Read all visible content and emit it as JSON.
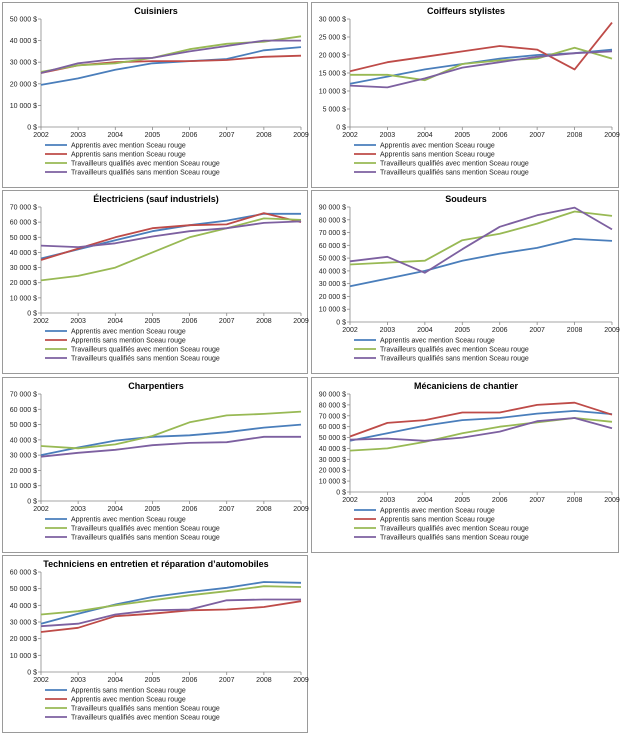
{
  "colors": {
    "blue": "#4a7ebb",
    "red": "#be4b48",
    "green": "#98b954",
    "purple": "#7d60a0"
  },
  "chart_data": [
    {
      "type": "line",
      "title": "Cuisiniers",
      "ylim": [
        0,
        50000
      ],
      "yticks": [
        0,
        10000,
        20000,
        30000,
        40000,
        50000
      ],
      "ytick_labels": [
        "0 $",
        "10 000 $",
        "20 000 $",
        "30 000 $",
        "40 000 $",
        "50 000 $"
      ],
      "categories": [
        "2002",
        "2003",
        "2004",
        "2005",
        "2006",
        "2007",
        "2008",
        "2009"
      ],
      "series": [
        {
          "name": "Apprentis avec mention Sceau rouge",
          "color": "blue",
          "values": [
            19500,
            22500,
            26500,
            29500,
            30500,
            31500,
            35500,
            37000
          ]
        },
        {
          "name": "Apprentis sans mention Sceau rouge",
          "color": "red",
          "values": [
            25000,
            28500,
            30000,
            30500,
            30500,
            31000,
            32500,
            33000
          ]
        },
        {
          "name": "Travailleurs qualifiés avec mention Sceau rouge",
          "color": "green",
          "values": [
            25500,
            28500,
            29500,
            32000,
            36000,
            38500,
            39500,
            42000
          ]
        },
        {
          "name": "Travailleurs qualifiés sans mention Sceau rouge",
          "color": "purple",
          "values": [
            25000,
            29500,
            31500,
            32000,
            35000,
            37500,
            40000,
            40000
          ]
        }
      ]
    },
    {
      "type": "line",
      "title": "Coiffeurs stylistes",
      "ylim": [
        0,
        30000
      ],
      "yticks": [
        0,
        5000,
        10000,
        15000,
        20000,
        25000,
        30000
      ],
      "ytick_labels": [
        "0 $",
        "5 000 $",
        "10 000 $",
        "15 000 $",
        "20 000 $",
        "25 000 $",
        "30 000 $"
      ],
      "categories": [
        "2002",
        "2003",
        "2004",
        "2005",
        "2006",
        "2007",
        "2008",
        "2009"
      ],
      "series": [
        {
          "name": "Apprentis avec mention Sceau rouge",
          "color": "blue",
          "values": [
            12000,
            14000,
            16000,
            17500,
            19000,
            20000,
            20500,
            21500
          ]
        },
        {
          "name": "Apprentis sans mention Sceau rouge",
          "color": "red",
          "values": [
            15500,
            18000,
            19500,
            21000,
            22500,
            21500,
            16000,
            29000
          ]
        },
        {
          "name": "Travailleurs qualifiés avec mention Sceau rouge",
          "color": "green",
          "values": [
            14500,
            14500,
            13000,
            17500,
            18500,
            19000,
            22000,
            19000
          ]
        },
        {
          "name": "Travailleurs qualifiés sans mention Sceau rouge",
          "color": "purple",
          "values": [
            11500,
            11000,
            13500,
            16500,
            18000,
            19500,
            20500,
            21000
          ]
        }
      ]
    },
    {
      "type": "line",
      "title": "Électriciens (sauf industriels)",
      "ylim": [
        0,
        70000
      ],
      "yticks": [
        0,
        10000,
        20000,
        30000,
        40000,
        50000,
        60000,
        70000
      ],
      "ytick_labels": [
        "0 $",
        "10 000 $",
        "20 000 $",
        "30 000 $",
        "40 000 $",
        "50 000 $",
        "60 000 $",
        "70 000 $"
      ],
      "categories": [
        "2002",
        "2003",
        "2004",
        "2005",
        "2006",
        "2007",
        "2008",
        "2009"
      ],
      "series": [
        {
          "name": "Apprentis avec mention Sceau rouge",
          "color": "blue",
          "values": [
            36000,
            42000,
            48000,
            54000,
            58000,
            61000,
            65500,
            65500
          ]
        },
        {
          "name": "Apprentis sans mention Sceau rouge",
          "color": "red",
          "values": [
            35000,
            42500,
            50000,
            56000,
            58000,
            58500,
            66000,
            60000
          ]
        },
        {
          "name": "Travailleurs qualifiés avec mention Sceau rouge",
          "color": "green",
          "values": [
            21500,
            24500,
            30000,
            40000,
            50000,
            56000,
            62500,
            61500
          ]
        },
        {
          "name": "Travailleurs qualifiés sans mention Sceau rouge",
          "color": "purple",
          "values": [
            44500,
            43500,
            46000,
            50500,
            54000,
            56000,
            59500,
            60500
          ]
        }
      ]
    },
    {
      "type": "line",
      "title": "Soudeurs",
      "ylim": [
        0,
        90000
      ],
      "yticks": [
        0,
        10000,
        20000,
        30000,
        40000,
        50000,
        60000,
        70000,
        80000,
        90000
      ],
      "ytick_labels": [
        "0 $",
        "10 000 $",
        "20 000 $",
        "30 000 $",
        "40 000 $",
        "50 000 $",
        "60 000 $",
        "70 000 $",
        "80 000 $",
        "90 000 $"
      ],
      "categories": [
        "2002",
        "2003",
        "2004",
        "2005",
        "2006",
        "2007",
        "2008",
        "2009"
      ],
      "series": [
        {
          "name": "Apprentis avec mention Sceau rouge",
          "color": "blue",
          "values": [
            28000,
            34000,
            40000,
            48000,
            53500,
            58000,
            65000,
            63500
          ]
        },
        {
          "name": "Travailleurs qualifiés avec mention Sceau rouge",
          "color": "green",
          "values": [
            45000,
            46500,
            48000,
            64000,
            69000,
            77000,
            86500,
            83000
          ]
        },
        {
          "name": "Travailleurs qualifiés sans mention Sceau rouge",
          "color": "purple",
          "values": [
            47500,
            51000,
            38500,
            57000,
            74500,
            83500,
            89500,
            72500
          ]
        }
      ]
    },
    {
      "type": "line",
      "title": "Charpentiers",
      "ylim": [
        0,
        70000
      ],
      "yticks": [
        0,
        10000,
        20000,
        30000,
        40000,
        50000,
        60000,
        70000
      ],
      "ytick_labels": [
        "0 $",
        "10 000 $",
        "20 000 $",
        "30 000 $",
        "40 000 $",
        "50 000 $",
        "60 000 $",
        "70 000 $"
      ],
      "categories": [
        "2002",
        "2003",
        "2004",
        "2005",
        "2006",
        "2007",
        "2008",
        "2009"
      ],
      "series": [
        {
          "name": "Apprentis avec mention Sceau rouge",
          "color": "blue",
          "values": [
            30000,
            35000,
            39500,
            42000,
            43000,
            45000,
            48000,
            50000
          ]
        },
        {
          "name": "Travailleurs qualifiés avec mention Sceau rouge",
          "color": "green",
          "values": [
            36000,
            34500,
            37000,
            42500,
            51500,
            56000,
            57000,
            58500
          ]
        },
        {
          "name": "Travailleurs qualifiés sans mention Sceau rouge",
          "color": "purple",
          "values": [
            29000,
            31500,
            33500,
            36500,
            38000,
            38500,
            42000,
            42000
          ]
        }
      ]
    },
    {
      "type": "line",
      "title": "Mécaniciens de chantier",
      "ylim": [
        0,
        90000
      ],
      "yticks": [
        0,
        10000,
        20000,
        30000,
        40000,
        50000,
        60000,
        70000,
        80000,
        90000
      ],
      "ytick_labels": [
        "0 $",
        "10 000 $",
        "20 000 $",
        "30 000 $",
        "40 000 $",
        "50 000 $",
        "60 000 $",
        "70 000 $",
        "80 000 $",
        "90 000 $"
      ],
      "categories": [
        "2002",
        "2003",
        "2004",
        "2005",
        "2006",
        "2007",
        "2008",
        "2009"
      ],
      "series": [
        {
          "name": "Apprentis avec mention Sceau rouge",
          "color": "blue",
          "values": [
            47000,
            54000,
            61000,
            66000,
            68000,
            72000,
            74500,
            71500
          ]
        },
        {
          "name": "Apprentis sans mention Sceau rouge",
          "color": "red",
          "values": [
            51000,
            63500,
            66000,
            73000,
            73000,
            80000,
            82000,
            71000
          ]
        },
        {
          "name": "Travailleurs qualifiés avec mention Sceau rouge",
          "color": "green",
          "values": [
            38000,
            40000,
            46000,
            54000,
            60000,
            64000,
            68000,
            64500
          ]
        },
        {
          "name": "Travailleurs qualifiés sans mention Sceau rouge",
          "color": "purple",
          "values": [
            48000,
            49000,
            47000,
            50000,
            55500,
            65000,
            68000,
            58500
          ]
        }
      ]
    },
    {
      "type": "line",
      "title": "Techniciens en entretien et réparation d’automobiles",
      "ylim": [
        0,
        60000
      ],
      "yticks": [
        0,
        10000,
        20000,
        30000,
        40000,
        50000,
        60000
      ],
      "ytick_labels": [
        "0 $",
        "10 000 $",
        "20 000 $",
        "30 000 $",
        "40 000 $",
        "50 000 $",
        "60 000 $"
      ],
      "categories": [
        "2002",
        "2003",
        "2004",
        "2005",
        "2006",
        "2007",
        "2008",
        "2009"
      ],
      "series": [
        {
          "name": "Apprentis sans mention Sceau rouge",
          "color": "blue",
          "values": [
            29000,
            35000,
            40500,
            45000,
            48000,
            50500,
            54000,
            53500
          ]
        },
        {
          "name": "Apprentis avec mention Sceau rouge",
          "color": "red",
          "values": [
            24000,
            26500,
            33500,
            35000,
            37000,
            37500,
            39000,
            42500
          ]
        },
        {
          "name": "Travailleurs qualifiés sans mention Sceau rouge",
          "color": "green",
          "values": [
            34500,
            36500,
            40000,
            43000,
            46000,
            48500,
            51500,
            51000
          ]
        },
        {
          "name": "Travailleurs qualifiés avec mention Sceau rouge",
          "color": "purple",
          "values": [
            27500,
            29000,
            34500,
            37000,
            37500,
            43000,
            43500,
            43500
          ]
        }
      ]
    }
  ]
}
